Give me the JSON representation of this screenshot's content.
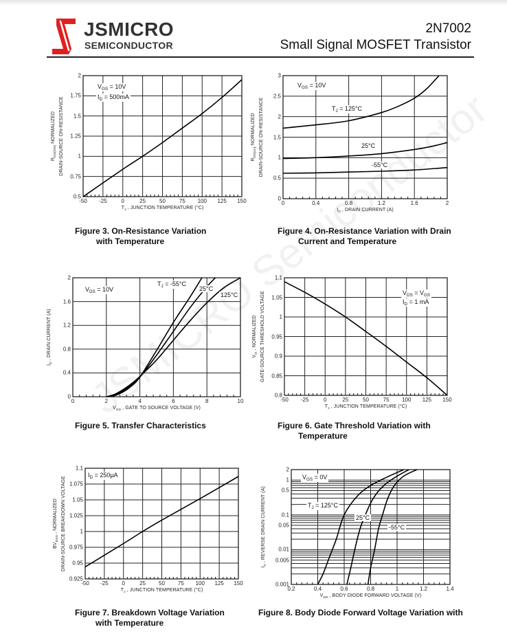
{
  "header": {
    "brand_name": "JSMICRO",
    "brand_sub": "SEMICONDUCTOR",
    "part_number": "2N7002",
    "doc_title": "Small Signal MOSFET Transistor",
    "brand_color": "#e02020"
  },
  "watermark": "JSMICRO Semiconductor",
  "captions": [
    [
      "Figure 3. On-Resistance Variation",
      "with Temperature"
    ],
    [
      "Figure 4. On-Resistance Variation with Drain",
      "Current and Temperature"
    ],
    [
      "Figure 5. Transfer Characteristics"
    ],
    [
      "Figure 6. Gate Threshold Variation with",
      "Temperature"
    ],
    [
      "Figure 7. Breakdown Voltage Variation",
      "with Temperature"
    ],
    [
      "Figure 8.  Body Diode Forward Voltage Variation with"
    ]
  ],
  "chart_data": [
    {
      "type": "line",
      "grid": true,
      "xlim": [
        -50,
        150
      ],
      "xticks": [
        -50,
        -25,
        0,
        25,
        50,
        75,
        100,
        125,
        150
      ],
      "ylim": [
        0.5,
        2
      ],
      "yticks": [
        0.5,
        0.75,
        1,
        1.25,
        1.5,
        1.75,
        2
      ],
      "ytick_labels": [
        "0.5",
        "0.75",
        "1",
        "1.25",
        "1.5",
        "1.75",
        "2"
      ],
      "xlabel": [
        "T",
        "J",
        " , JUNCTION TEMPERATURE (°C)"
      ],
      "ylabel": [
        [
          "R",
          "DS(ON)",
          "  NORMALIZED"
        ],
        [
          "DRAIN-SOURCE ON-RESISTANCE"
        ]
      ],
      "annotations": [
        [
          "V",
          "GS",
          " = 10V"
        ],
        [
          "I",
          "D",
          " = 500mA"
        ]
      ],
      "series": [
        {
          "x": [
            -50,
            0,
            25,
            50,
            75,
            100,
            125,
            150
          ],
          "y": [
            0.5,
            0.84,
            1.0,
            1.17,
            1.35,
            1.53,
            1.73,
            1.95
          ]
        }
      ]
    },
    {
      "type": "line",
      "grid": true,
      "xlim": [
        0,
        2
      ],
      "xticks": [
        0,
        0.4,
        0.8,
        1.2,
        1.6,
        2
      ],
      "ylim": [
        0,
        3
      ],
      "yticks": [
        0,
        0.5,
        1,
        1.5,
        2,
        2.5,
        3
      ],
      "ytick_labels": [
        "0",
        "0.5",
        "1",
        "1.5",
        "2",
        "2.5",
        "3"
      ],
      "xlabel": [
        "I",
        "D",
        " , DRAIN CURRENT (A)"
      ],
      "ylabel": [
        [
          "R",
          "DS(on)",
          "  NORMALIZED"
        ],
        [
          "DRAIN-SOURCE ON-RESISTANCE"
        ]
      ],
      "annotations": [
        [
          "V",
          "GS",
          " = 10V"
        ],
        [
          "T",
          "J",
          " = 125°C"
        ],
        [
          "25°C"
        ],
        [
          "-55°C"
        ]
      ],
      "series": [
        {
          "name": "T J = 125°C",
          "x": [
            0,
            0.4,
            0.8,
            1.2,
            1.4,
            1.6,
            1.75,
            1.9
          ],
          "y": [
            1.72,
            1.8,
            1.9,
            2.1,
            2.25,
            2.45,
            2.68,
            3.0
          ]
        },
        {
          "name": "25°C",
          "x": [
            0,
            0.4,
            0.8,
            1.2,
            1.6,
            1.8,
            2
          ],
          "y": [
            0.98,
            1.0,
            1.04,
            1.1,
            1.2,
            1.27,
            1.37
          ]
        },
        {
          "name": "-55°C",
          "x": [
            0,
            0.4,
            0.8,
            1.2,
            1.6,
            2
          ],
          "y": [
            0.62,
            0.63,
            0.65,
            0.67,
            0.7,
            0.76
          ]
        }
      ]
    },
    {
      "type": "line",
      "grid": true,
      "xlim": [
        0,
        10
      ],
      "xticks": [
        0,
        2,
        4,
        6,
        8,
        10
      ],
      "ylim": [
        0,
        2
      ],
      "yticks": [
        0,
        0.4,
        0.8,
        1.2,
        1.6,
        2
      ],
      "ytick_labels": [
        "0",
        "0.4",
        "0.8",
        "1.2",
        "1.6",
        "2"
      ],
      "xlabel": [
        "V",
        "GS",
        " , GATE TO SOURCE VOLTAGE (V)"
      ],
      "ylabel": [
        [
          "I",
          "D",
          " , DRAIN CURRENT (A)"
        ]
      ],
      "annotations": [
        [
          "V",
          "DS",
          "  = 10V"
        ],
        [
          "T",
          "J",
          " = -55°C"
        ],
        [
          "25°C"
        ],
        [
          "125°C"
        ]
      ],
      "series": [
        {
          "name": "-55°C",
          "x": [
            2,
            2.5,
            3,
            3.5,
            4,
            5,
            6,
            7,
            7.7
          ],
          "y": [
            0,
            0.02,
            0.08,
            0.18,
            0.33,
            0.78,
            1.25,
            1.68,
            2.0
          ]
        },
        {
          "name": "25°C",
          "x": [
            2,
            2.5,
            3,
            3.5,
            4,
            5,
            6,
            7,
            8,
            8.5
          ],
          "y": [
            0,
            0.03,
            0.1,
            0.2,
            0.33,
            0.7,
            1.1,
            1.5,
            1.85,
            2.0
          ]
        },
        {
          "name": "125°C",
          "x": [
            2,
            2.5,
            3,
            3.5,
            4,
            5,
            6,
            7,
            8,
            9,
            10
          ],
          "y": [
            0,
            0.04,
            0.12,
            0.22,
            0.34,
            0.62,
            0.95,
            1.28,
            1.58,
            1.83,
            2.0
          ]
        }
      ]
    },
    {
      "type": "line",
      "grid": true,
      "xlim": [
        -50,
        150
      ],
      "xticks": [
        -50,
        -25,
        0,
        25,
        50,
        75,
        100,
        125,
        150
      ],
      "ylim": [
        0.8,
        1.1
      ],
      "yticks": [
        0.8,
        0.85,
        0.9,
        0.95,
        1,
        1.05,
        1.1
      ],
      "ytick_labels": [
        "0.8",
        "0.85",
        "0.9",
        "0.95",
        "1",
        "1.05",
        "1.1"
      ],
      "xlabel": [
        "T",
        "J",
        " , JUNCTION TEMPERATURE (°C)"
      ],
      "ylabel": [
        [
          "V",
          "th",
          " , NORMALIZED"
        ],
        [
          "GATE-SOURCE THRESHOLD VOLTAGE"
        ]
      ],
      "annotations": [
        [
          "V",
          "DS",
          " = V",
          "GS",
          ""
        ],
        [
          "I",
          "D",
          "  = 1 mA"
        ]
      ],
      "series": [
        {
          "x": [
            -50,
            -25,
            0,
            25,
            50,
            75,
            100,
            125,
            150
          ],
          "y": [
            1.09,
            1.063,
            1.033,
            1.0,
            0.963,
            0.925,
            0.885,
            0.845,
            0.8
          ]
        }
      ]
    },
    {
      "type": "line",
      "grid": true,
      "xlim": [
        -50,
        150
      ],
      "xticks": [
        -50,
        -25,
        0,
        25,
        50,
        75,
        100,
        125,
        150
      ],
      "ylim": [
        0.925,
        1.1
      ],
      "yticks": [
        0.925,
        0.95,
        0.975,
        1,
        1.025,
        1.05,
        1.075,
        1.1
      ],
      "ytick_labels": [
        "0.925",
        "0.95",
        "0.975",
        "1",
        "1.025",
        "1.05",
        "1.075",
        "1.1"
      ],
      "xlabel": [
        "T",
        "J",
        " , JUNCTION TEMPERATURE (°C)"
      ],
      "ylabel": [
        [
          "BV",
          "DSS",
          " , NORMALIZED"
        ],
        [
          "DRAIN-SOURCE BREAKDOWN VOLTAGE"
        ]
      ],
      "annotations": [
        [
          "I",
          "D",
          "  = 250µA"
        ]
      ],
      "series": [
        {
          "x": [
            -50,
            0,
            25,
            50,
            100,
            150
          ],
          "y": [
            0.944,
            0.981,
            1.0,
            1.018,
            1.052,
            1.087
          ]
        }
      ]
    },
    {
      "type": "line",
      "grid": true,
      "yscale": "log",
      "xlim": [
        0.2,
        1.4
      ],
      "xticks": [
        0.2,
        0.4,
        0.6,
        0.8,
        1,
        1.2,
        1.4
      ],
      "ylim": [
        0.001,
        2
      ],
      "yticks": [
        0.001,
        0.005,
        0.01,
        0.05,
        0.1,
        0.5,
        1,
        2
      ],
      "ytick_labels": [
        "0.001",
        "0.005",
        "0.01",
        "0.05",
        "0.1",
        "0.5",
        "1",
        "2"
      ],
      "xlabel": [
        "V",
        "SD",
        " , BODY DIODE FORWARD VOLTAGE (V)"
      ],
      "ylabel": [
        [
          "I",
          "S",
          " , REVERSE DRAIN CURRENT (A)"
        ]
      ],
      "annotations": [
        [
          "V",
          "GS",
          "  = 0V"
        ],
        [
          "T",
          "J",
          " = 125°C"
        ],
        [
          "25°C"
        ],
        [
          "-55°C"
        ]
      ],
      "series": [
        {
          "name": "125°C",
          "x": [
            0.4,
            0.44,
            0.48,
            0.54,
            0.6,
            0.7,
            0.8,
            0.92,
            1.05
          ],
          "y": [
            0.001,
            0.002,
            0.005,
            0.02,
            0.1,
            0.35,
            0.7,
            1.2,
            2
          ]
        },
        {
          "name": "25°C",
          "x": [
            0.62,
            0.65,
            0.68,
            0.72,
            0.76,
            0.82,
            0.9,
            1.0,
            1.09
          ],
          "y": [
            0.001,
            0.003,
            0.01,
            0.04,
            0.1,
            0.3,
            0.7,
            1.3,
            2
          ]
        },
        {
          "name": "-55°C",
          "x": [
            0.78,
            0.8,
            0.83,
            0.86,
            0.89,
            0.93,
            0.98,
            1.05,
            1.15
          ],
          "y": [
            0.001,
            0.003,
            0.01,
            0.04,
            0.1,
            0.3,
            0.7,
            1.3,
            2
          ]
        }
      ]
    }
  ]
}
